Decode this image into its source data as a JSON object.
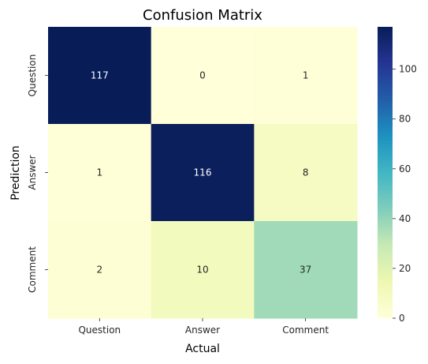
{
  "chart_data": {
    "type": "heatmap",
    "title": "Confusion Matrix",
    "xlabel": "Actual",
    "ylabel": "Prediction",
    "x_categories": [
      "Question",
      "Answer",
      "Comment"
    ],
    "y_categories": [
      "Question",
      "Answer",
      "Comment"
    ],
    "values": [
      [
        117,
        0,
        1
      ],
      [
        1,
        116,
        8
      ],
      [
        2,
        10,
        37
      ]
    ],
    "colormap": "YlGnBu",
    "colorbar": {
      "vmin": 0,
      "vmax": 117,
      "ticks": [
        0,
        20,
        40,
        60,
        80,
        100
      ]
    },
    "colors": {
      "low": "#ffffd9",
      "high": "#081d58",
      "text_dark": "#262626",
      "text_light": "#ffffff"
    }
  }
}
